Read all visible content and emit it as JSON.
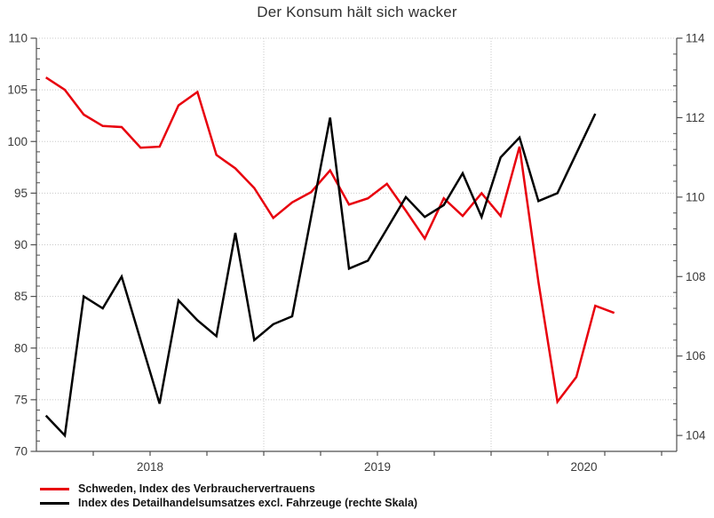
{
  "title": "Der Konsum hält sich wacker",
  "legend": {
    "items": [
      {
        "label": "Schweden, Index des Verbrauchervertrauens",
        "color": "#e8000d"
      },
      {
        "label": "Index des Detailhandelsumsatzes excl. Fahrzeuge (rechte Skala)",
        "color": "#000000"
      }
    ]
  },
  "chart_data": {
    "type": "line",
    "frequency": "monthly",
    "start": "2018-01",
    "title": "Der Konsum hält sich wacker",
    "x_year_labels": [
      "2018",
      "2019",
      "2020"
    ],
    "left_axis": {
      "min": 70,
      "max": 110,
      "major_ticks": [
        70,
        75,
        80,
        85,
        90,
        95,
        100,
        105,
        110
      ],
      "minor_step": 1
    },
    "right_axis": {
      "min": 103.6,
      "max": 114,
      "major_ticks": [
        104,
        106,
        108,
        110,
        112,
        114
      ],
      "minor_step": 0.4
    },
    "grid": {
      "horizontal_at_left_values": [
        75,
        80,
        85,
        90,
        95,
        100,
        105,
        110
      ],
      "vertical_at_year_starts": [
        "2019",
        "2020"
      ]
    },
    "series": [
      {
        "name": "Schweden, Index des Verbrauchervertrauens",
        "axis": "left",
        "color": "#e8000d",
        "values": [
          106.2,
          105.0,
          102.6,
          101.5,
          101.4,
          99.4,
          99.5,
          103.5,
          104.8,
          98.7,
          97.4,
          95.5,
          92.6,
          94.1,
          95.1,
          97.2,
          93.9,
          94.5,
          95.9,
          93.3,
          90.6,
          94.5,
          92.8,
          95.0,
          92.8,
          99.5,
          86.4,
          74.8,
          77.2,
          84.1,
          83.4
        ]
      },
      {
        "name": "Index des Detailhandelsumsatzes excl. Fahrzeuge (rechte Skala)",
        "axis": "right",
        "color": "#000000",
        "values": [
          104.5,
          104.0,
          107.5,
          107.2,
          108.0,
          106.4,
          104.8,
          107.4,
          106.9,
          106.5,
          109.1,
          106.4,
          106.8,
          107.0,
          109.5,
          112.0,
          108.2,
          108.4,
          109.2,
          110.0,
          109.5,
          109.8,
          110.6,
          109.5,
          111.0,
          111.5,
          109.9,
          110.1,
          111.1,
          112.1
        ]
      }
    ]
  }
}
